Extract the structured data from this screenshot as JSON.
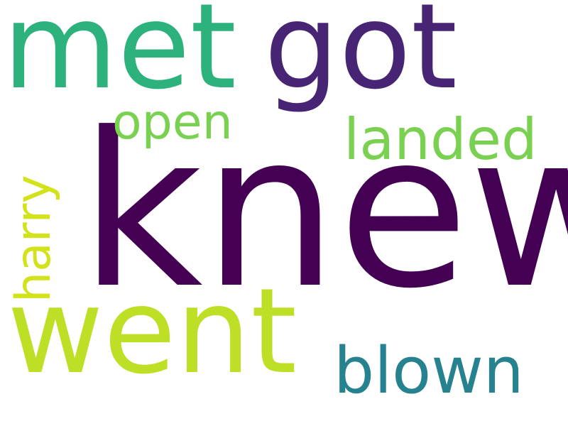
{
  "words": [
    {
      "text": "knew",
      "color": "#440154"
    },
    {
      "text": "met",
      "color": "#2db27d"
    },
    {
      "text": "got",
      "color": "#482475"
    },
    {
      "text": "went",
      "color": "#bddf26"
    },
    {
      "text": "blown",
      "color": "#26828e"
    },
    {
      "text": "landed",
      "color": "#7ad151"
    },
    {
      "text": "open",
      "color": "#7ad151"
    },
    {
      "text": "harry",
      "color": "#d2e21b"
    }
  ]
}
